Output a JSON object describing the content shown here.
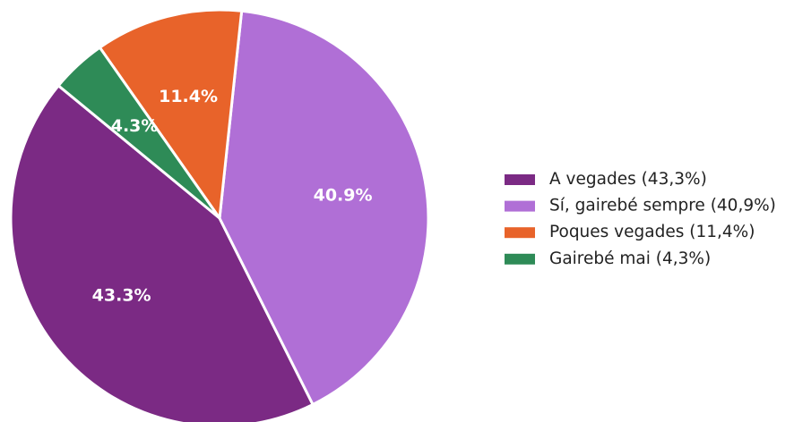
{
  "chart_data": {
    "type": "pie",
    "categories": [
      "A vegades (43,3%)",
      "Sí, gairebé sempre (40,9%)",
      "Poques vegades (11,4%)",
      "Gairebé mai (4,3%)"
    ],
    "values": [
      43.3,
      40.9,
      11.4,
      4.3
    ],
    "value_labels": [
      "43.3%",
      "40.9%",
      "11.4%",
      "4.3%"
    ],
    "colors": [
      "#7b2a84",
      "#b06fd6",
      "#e8632a",
      "#2e8b57"
    ],
    "legend": "right"
  }
}
